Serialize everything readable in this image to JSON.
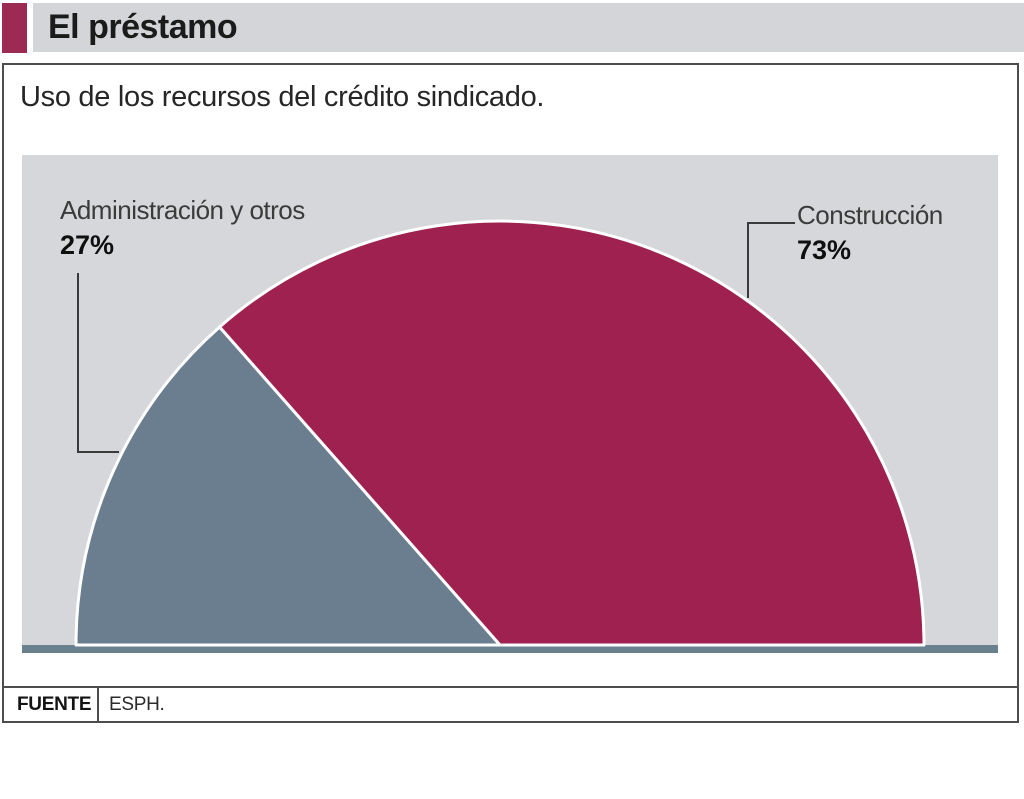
{
  "header": {
    "title": "El préstamo"
  },
  "subtitle": "Uso de los recursos del crédito sindicado.",
  "source": {
    "label": "FUENTE",
    "value": "ESPH."
  },
  "colors": {
    "accent": "#9c2a52",
    "header_bar": "#d3d5d8",
    "chart_bg": "#d5d7da",
    "baseline_bar": "#69808f",
    "panel_border": "#4d4d4d",
    "slice_admin": "#6a7e90",
    "slice_construccion": "#9e2150",
    "slice_outline": "#ffffff",
    "callout_line": "#3a3a3a"
  },
  "chart_data": {
    "type": "pie",
    "variant": "semicircle",
    "title": "Uso de los recursos del crédito sindicado.",
    "unit": "%",
    "total": 100,
    "legend_position": "callouts",
    "grid": false,
    "slices": [
      {
        "label": "Administración y otros",
        "value": 27,
        "display": "27%",
        "color": "#6a7e90"
      },
      {
        "label": "Construcción",
        "value": 73,
        "display": "73%",
        "color": "#9e2150"
      }
    ]
  }
}
